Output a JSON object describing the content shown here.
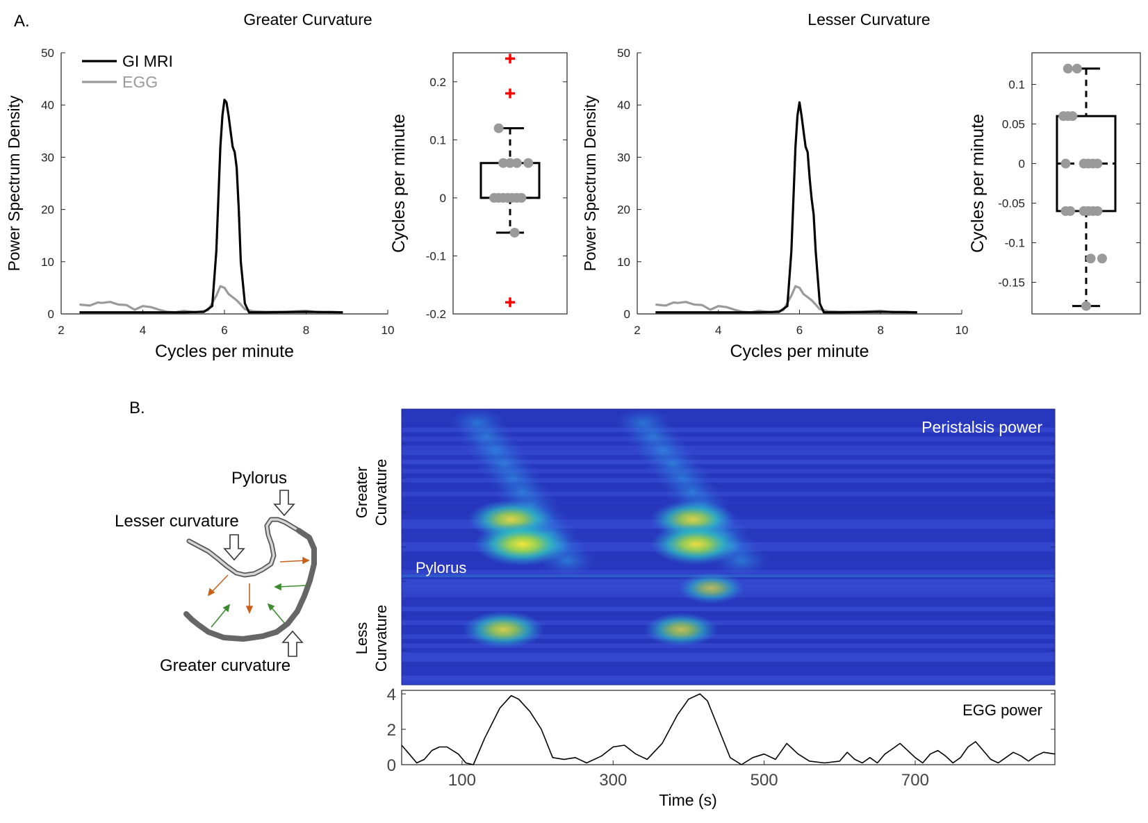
{
  "panel_labels": {
    "a": "A.",
    "b": "B."
  },
  "colors": {
    "mri": "#000000",
    "egg": "#9a9a9a",
    "outlier": "#ff0000",
    "points": "#9a9a9a",
    "heatmap_bg": "#2b3cc4",
    "stomach_light": "#bdbdbd",
    "stomach_mid": "#8c8c8c",
    "stomach_dark": "#4a4a4a",
    "arrow_orange": "#c8611a",
    "arrow_green": "#3d8b2e",
    "white_text": "#ffffff"
  },
  "chart_data": [
    {
      "id": "greater-psd",
      "type": "line",
      "title": "Greater Curvature",
      "xlabel": "Cycles per minute",
      "ylabel": "Power Spectrum Density",
      "xlim": [
        2,
        10
      ],
      "ylim": [
        0,
        50
      ],
      "xticks": [
        "2",
        "4",
        "6",
        "8",
        "10"
      ],
      "yticks": [
        "0",
        "10",
        "20",
        "30",
        "40",
        "50"
      ],
      "legend": [
        "GI MRI",
        "EGG"
      ],
      "series": [
        {
          "name": "GI MRI",
          "x": [
            2.45,
            4.5,
            5.0,
            5.5,
            5.7,
            5.8,
            5.9,
            5.95,
            6.0,
            6.05,
            6.1,
            6.15,
            6.2,
            6.25,
            6.3,
            6.35,
            6.4,
            6.5,
            6.6,
            7.0,
            8.0,
            8.9
          ],
          "y": [
            0.3,
            0.3,
            0.3,
            0.4,
            1.5,
            12,
            32,
            38,
            41,
            40.5,
            38,
            35,
            32,
            31,
            28,
            20,
            10,
            2,
            0.3,
            0.3,
            0.4,
            0.3
          ]
        },
        {
          "name": "EGG",
          "x": [
            2.45,
            2.7,
            2.9,
            3.0,
            3.2,
            3.4,
            3.6,
            3.8,
            4.0,
            4.2,
            4.4,
            4.6,
            4.8,
            5.0,
            5.3,
            5.6,
            5.8,
            5.9,
            6.0,
            6.1,
            6.2,
            6.3,
            6.4,
            6.5,
            6.7,
            7.0,
            7.5,
            8.0,
            8.3,
            8.6,
            8.9
          ],
          "y": [
            1.8,
            1.6,
            2.2,
            2.1,
            2.3,
            1.8,
            1.7,
            0.8,
            1.5,
            1.3,
            0.8,
            0.4,
            0.3,
            0.6,
            0.3,
            0.7,
            3.5,
            5.3,
            5.0,
            3.8,
            3.2,
            2.6,
            1.8,
            0.9,
            0.5,
            0.4,
            0.4,
            0.6,
            0.3,
            0.4,
            0.3
          ]
        }
      ]
    },
    {
      "id": "greater-box",
      "type": "box",
      "ylabel": "Cycles per minute",
      "ylim": [
        -0.2,
        0.25
      ],
      "yticks": [
        "-0.2",
        "-0.1",
        "0",
        "0.1",
        "0.2"
      ],
      "q1": 0,
      "median": 0,
      "q3": 0.06,
      "whisker_low": -0.06,
      "whisker_high": 0.12,
      "outliers": [
        0.24,
        0.18,
        -0.18
      ],
      "points": [
        [
          -0.3,
          0.12
        ],
        [
          -0.18,
          0.06
        ],
        [
          0.0,
          0.06
        ],
        [
          0.18,
          0.06
        ],
        [
          0.48,
          0.06
        ],
        [
          -0.42,
          0.0
        ],
        [
          -0.3,
          0.0
        ],
        [
          -0.18,
          0.0
        ],
        [
          -0.06,
          0.0
        ],
        [
          0.06,
          0.0
        ],
        [
          0.18,
          0.0
        ],
        [
          0.3,
          0.0
        ],
        [
          0.12,
          -0.06
        ]
      ]
    },
    {
      "id": "lesser-psd",
      "type": "line",
      "title": "Lesser Curvature",
      "xlabel": "Cycles per minute",
      "ylabel": "Power Spectrum Density",
      "xlim": [
        2,
        10
      ],
      "ylim": [
        0,
        50
      ],
      "xticks": [
        "2",
        "4",
        "6",
        "8",
        "10"
      ],
      "yticks": [
        "0",
        "10",
        "20",
        "30",
        "40",
        "50"
      ],
      "series": [
        {
          "name": "GI MRI",
          "x": [
            2.45,
            4.5,
            5.0,
            5.5,
            5.7,
            5.8,
            5.9,
            5.95,
            6.0,
            6.05,
            6.1,
            6.15,
            6.2,
            6.25,
            6.3,
            6.35,
            6.4,
            6.5,
            6.6,
            7.0,
            8.0,
            8.9
          ],
          "y": [
            0.3,
            0.3,
            0.3,
            0.4,
            1.5,
            12,
            32,
            38,
            40.5,
            38,
            35,
            32,
            31,
            26,
            22,
            19,
            12,
            2,
            0.3,
            0.3,
            0.4,
            0.3
          ]
        },
        {
          "name": "EGG",
          "x": [
            2.45,
            2.7,
            2.9,
            3.0,
            3.2,
            3.4,
            3.6,
            3.8,
            4.0,
            4.2,
            4.4,
            4.6,
            4.8,
            5.0,
            5.3,
            5.6,
            5.8,
            5.9,
            6.0,
            6.1,
            6.2,
            6.3,
            6.4,
            6.5,
            6.7,
            7.0,
            7.5,
            8.0,
            8.3,
            8.6,
            8.9
          ],
          "y": [
            1.8,
            1.6,
            2.2,
            2.1,
            2.3,
            1.8,
            1.7,
            0.8,
            1.5,
            1.3,
            0.8,
            0.4,
            0.3,
            0.6,
            0.3,
            0.7,
            3.5,
            5.3,
            5.0,
            3.8,
            3.2,
            2.6,
            1.8,
            0.9,
            0.5,
            0.4,
            0.4,
            0.6,
            0.3,
            0.4,
            0.3
          ]
        }
      ]
    },
    {
      "id": "lesser-box",
      "type": "box",
      "ylabel": "Cycles per minute",
      "ylim": [
        -0.19,
        0.14
      ],
      "yticks": [
        "-0.15",
        "-0.1",
        "-0.05",
        "0",
        "0.05",
        "0.1"
      ],
      "q1": -0.06,
      "median": 0,
      "q3": 0.06,
      "whisker_low": -0.18,
      "whisker_high": 0.12,
      "outliers": [],
      "points": [
        [
          -0.48,
          0.12
        ],
        [
          -0.24,
          0.12
        ],
        [
          -0.6,
          0.06
        ],
        [
          -0.48,
          0.06
        ],
        [
          -0.36,
          0.06
        ],
        [
          -0.54,
          0.0
        ],
        [
          -0.06,
          0.0
        ],
        [
          0.06,
          0.0
        ],
        [
          0.18,
          0.0
        ],
        [
          0.3,
          0.0
        ],
        [
          -0.54,
          -0.06
        ],
        [
          -0.42,
          -0.06
        ],
        [
          -0.06,
          -0.06
        ],
        [
          0.06,
          -0.06
        ],
        [
          0.18,
          -0.06
        ],
        [
          0.3,
          -0.06
        ],
        [
          0.12,
          -0.12
        ],
        [
          0.42,
          -0.12
        ],
        [
          0.0,
          -0.18
        ]
      ]
    },
    {
      "id": "peristalsis-heatmap",
      "type": "heatmap",
      "title": "Peristalsis power",
      "ylabel_top": [
        "Greater",
        "Curvature"
      ],
      "ylabel_bottom": [
        "Less",
        "Curvature"
      ],
      "annotation": "Pylorus",
      "xlim": [
        20,
        885
      ],
      "hotspots": [
        {
          "t": 165,
          "row": 0.4,
          "intensity": 0.75
        },
        {
          "t": 180,
          "row": 0.49,
          "intensity": 0.85
        },
        {
          "t": 405,
          "row": 0.4,
          "intensity": 0.72
        },
        {
          "t": 410,
          "row": 0.49,
          "intensity": 0.8
        },
        {
          "t": 155,
          "row": 0.8,
          "intensity": 0.7
        },
        {
          "t": 390,
          "row": 0.8,
          "intensity": 0.62
        },
        {
          "t": 430,
          "row": 0.65,
          "intensity": 0.55
        }
      ],
      "ridges": [
        {
          "t0": 120,
          "t1": 240,
          "intensity": 0.35
        },
        {
          "t0": 340,
          "t1": 470,
          "intensity": 0.35
        }
      ]
    },
    {
      "id": "egg-power",
      "type": "line",
      "title": "EGG power",
      "xlabel": "Time (s)",
      "xlim": [
        20,
        885
      ],
      "ylim": [
        0,
        4.2
      ],
      "xticks": [
        "100",
        "300",
        "500",
        "700"
      ],
      "yticks": [
        "0",
        "2",
        "4"
      ],
      "series": [
        {
          "name": "EGG power",
          "x": [
            20,
            30,
            40,
            50,
            60,
            70,
            80,
            95,
            105,
            115,
            130,
            150,
            165,
            175,
            190,
            205,
            220,
            235,
            250,
            265,
            285,
            300,
            315,
            330,
            345,
            365,
            385,
            400,
            415,
            425,
            440,
            455,
            470,
            485,
            500,
            515,
            530,
            545,
            560,
            580,
            600,
            610,
            620,
            630,
            640,
            650,
            660,
            670,
            680,
            690,
            700,
            710,
            720,
            730,
            740,
            750,
            760,
            770,
            780,
            790,
            800,
            810,
            820,
            830,
            840,
            850,
            860,
            870,
            885
          ],
          "y": [
            1.1,
            0.6,
            0.1,
            0.3,
            0.8,
            1.0,
            1.0,
            0.6,
            0.1,
            0.0,
            1.5,
            3.2,
            3.9,
            3.7,
            3.0,
            2.0,
            0.4,
            0.3,
            0.4,
            0.1,
            0.5,
            1.0,
            1.1,
            0.6,
            0.3,
            1.2,
            2.8,
            3.7,
            4.0,
            3.6,
            2.0,
            0.4,
            0.0,
            0.4,
            0.6,
            0.3,
            1.2,
            0.6,
            0.2,
            0.1,
            0.2,
            0.7,
            0.3,
            0.1,
            0.4,
            0.1,
            0.6,
            0.9,
            1.2,
            0.8,
            0.4,
            0.1,
            0.6,
            0.8,
            0.5,
            0.1,
            0.4,
            1.0,
            1.3,
            0.8,
            0.3,
            0.1,
            0.4,
            0.7,
            0.5,
            0.2,
            0.5,
            0.7,
            0.6
          ]
        }
      ]
    }
  ],
  "diagram": {
    "pylorus": "Pylorus",
    "lesser": "Lesser curvature",
    "greater": "Greater curvature"
  }
}
